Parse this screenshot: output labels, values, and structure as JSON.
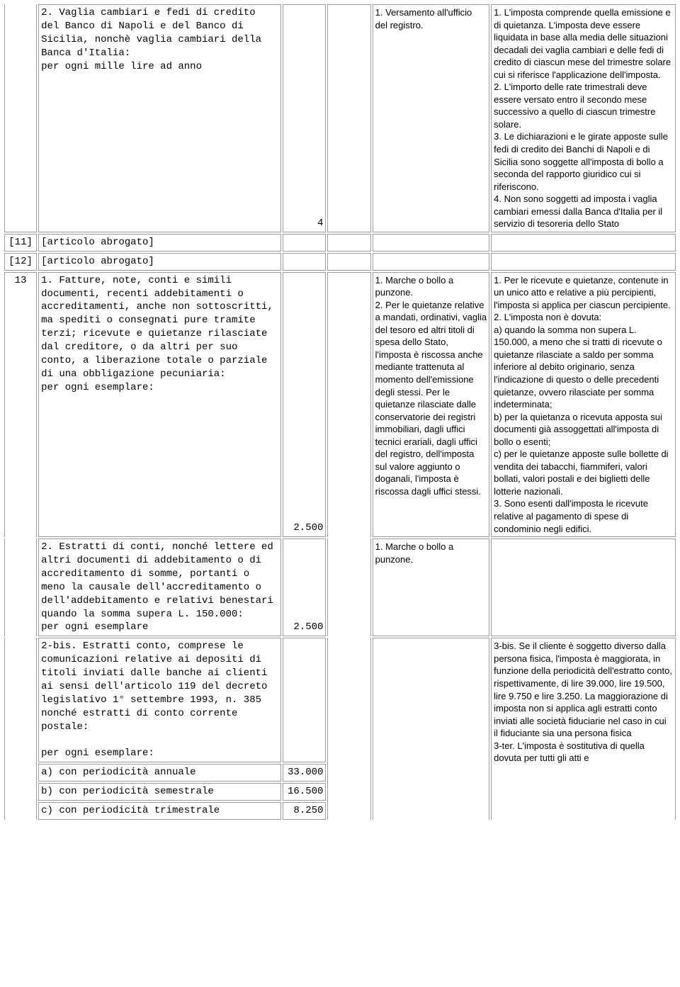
{
  "colors": {
    "border": "#9c9c9c",
    "background": "#ffffff",
    "text": "#000000"
  },
  "fonts": {
    "mono": "Courier New",
    "sans": "Arial",
    "size_mono": 14,
    "size_sans": 13
  },
  "cols": {
    "num": 46,
    "desc": 342,
    "amount": 61,
    "empty": 61,
    "note1": 165,
    "note2": 260
  },
  "rows": [
    {
      "num": "",
      "desc": "2. Vaglia cambiari e fedi di credito del Banco di Napoli e del Banco di Sicilia, nonchè vaglia cambiari della Banca d'Italia:\nper ogni mille lire ad anno",
      "amount": "4",
      "note1": "1. Versamento all'ufficio del registro.",
      "note2": "1. L'imposta comprende quella emissione e di quietanza. L'imposta deve essere liquidata in base alla media delle situazioni decadali dei vaglia cambiari e delle fedi di credito di ciascun mese del trimestre solare cui si riferisce l'applicazione dell'imposta.\n2. L'importo delle rate trimestrali deve essere versato entro il secondo mese successivo a quello di ciascun trimestre solare.\n3. Le dichiarazioni e le girate apposte sulle fedi di credito dei Banchi di Napoli e di Sicilia sono soggette all'imposta di bollo a seconda del rapporto giuridico cui si riferiscono.\n4. Non sono soggetti ad imposta i vaglia cambiari emessi dalla Banca d'Italia per il servizio di tesoreria dello Stato"
    },
    {
      "num": "[11]",
      "desc": "[articolo abrogato]",
      "amount": "",
      "note1": "",
      "note2": ""
    },
    {
      "num": "[12]",
      "desc": "[articolo abrogato]",
      "amount": "",
      "note1": "",
      "note2": ""
    },
    {
      "num": "13",
      "desc": "1. Fatture, note, conti e simili documenti, recenti addebitamenti o accreditamenti, anche non sottoscritti, ma spediti o consegnati pure tramite terzi; ricevute e quietanze rilasciate dal creditore, o da altri per suo conto, a liberazione totale o parziale di una obbligazione pecuniaria:\nper ogni esemplare:",
      "amount": "2.500",
      "note1": "1. Marche o bollo a punzone.\n2. Per le quietanze relative a mandati, ordinativi, vaglia del tesoro ed altri titoli di spesa dello Stato, l'imposta è riscossa anche mediante trattenuta al momento dell'emissione degli stessi. Per le quietanze rilasciate dalle conservatorie dei registri immobiliari, dagli uffici tecnici erariali, dagli uffici del registro, dell'imposta sul valore aggiunto o doganali, l'imposta è riscossa dagli uffici stessi.",
      "note2": "1. Per le ricevute e quietanze, contenute in un unico atto e relative a più percipienti, l'imposta si applica per ciascun percipiente.\n2. L'imposta non è dovuta:\na) quando la somma non supera L. 150.000, a meno che si tratti di ricevute o quietanze rilasciate a saldo per somma inferiore al debito originario, senza l'indicazione di questo o delle precedenti quietanze, ovvero rilasciate per somma indeterminata;\nb) per la quietanza o ricevuta apposta sui documenti già assoggettati all'imposta di bollo o esenti;\nc) per le quietanze apposte sulle bollette di vendita dei tabacchi, fiammiferi, valori bollati, valori postali e dei biglietti delle lotterie nazionali.\n3. Sono esenti dall'imposta le ricevute relative al pagamento di spese di condominio negli edifici."
    },
    {
      "num": "",
      "desc": "2. Estratti di conti, nonché lettere ed altri documenti di addebitamento o di accreditamento di somme, portanti o meno la causale dell'accreditamento o dell'addebitamento e relativi benestari quando la somma supera L. 150.000:\nper ogni esemplare",
      "amount": "2.500",
      "note1": "1. Marche o bollo a punzone.",
      "note2": ""
    },
    {
      "num": "",
      "desc": "2-bis. Estratti conto, comprese le comunicazioni relative ai depositi di titoli inviati dalle banche ai clienti ai sensi dell'articolo 119 del decreto legislativo 1° settembre 1993, n. 385 nonché estratti di conto corrente postale:\n\nper ogni esemplare:",
      "amount": "",
      "note1": "",
      "note2": "3-bis. Se il cliente è soggetto diverso dalla persona fisica, l'imposta è maggiorata, in funzione della periodicità dell'estratto conto, rispettivamente, di lire 39.000, lire 19.500, lire 9.750 e lire 3.250. La maggiorazione di imposta non si applica agli estratti conto inviati alle società fiduciarie nel caso in cui il fiduciante sia una persona fisica\n3-ter. L'imposta è sostitutiva di quella dovuta per tutti gli atti e"
    },
    {
      "sub_a": {
        "desc": "a) con periodicità annuale",
        "amount": "33.000"
      },
      "sub_b": {
        "desc": "b) con periodicità semestrale",
        "amount": "16.500"
      },
      "sub_c": {
        "desc": "c) con periodicità trimestrale",
        "amount": "8.250"
      }
    }
  ]
}
